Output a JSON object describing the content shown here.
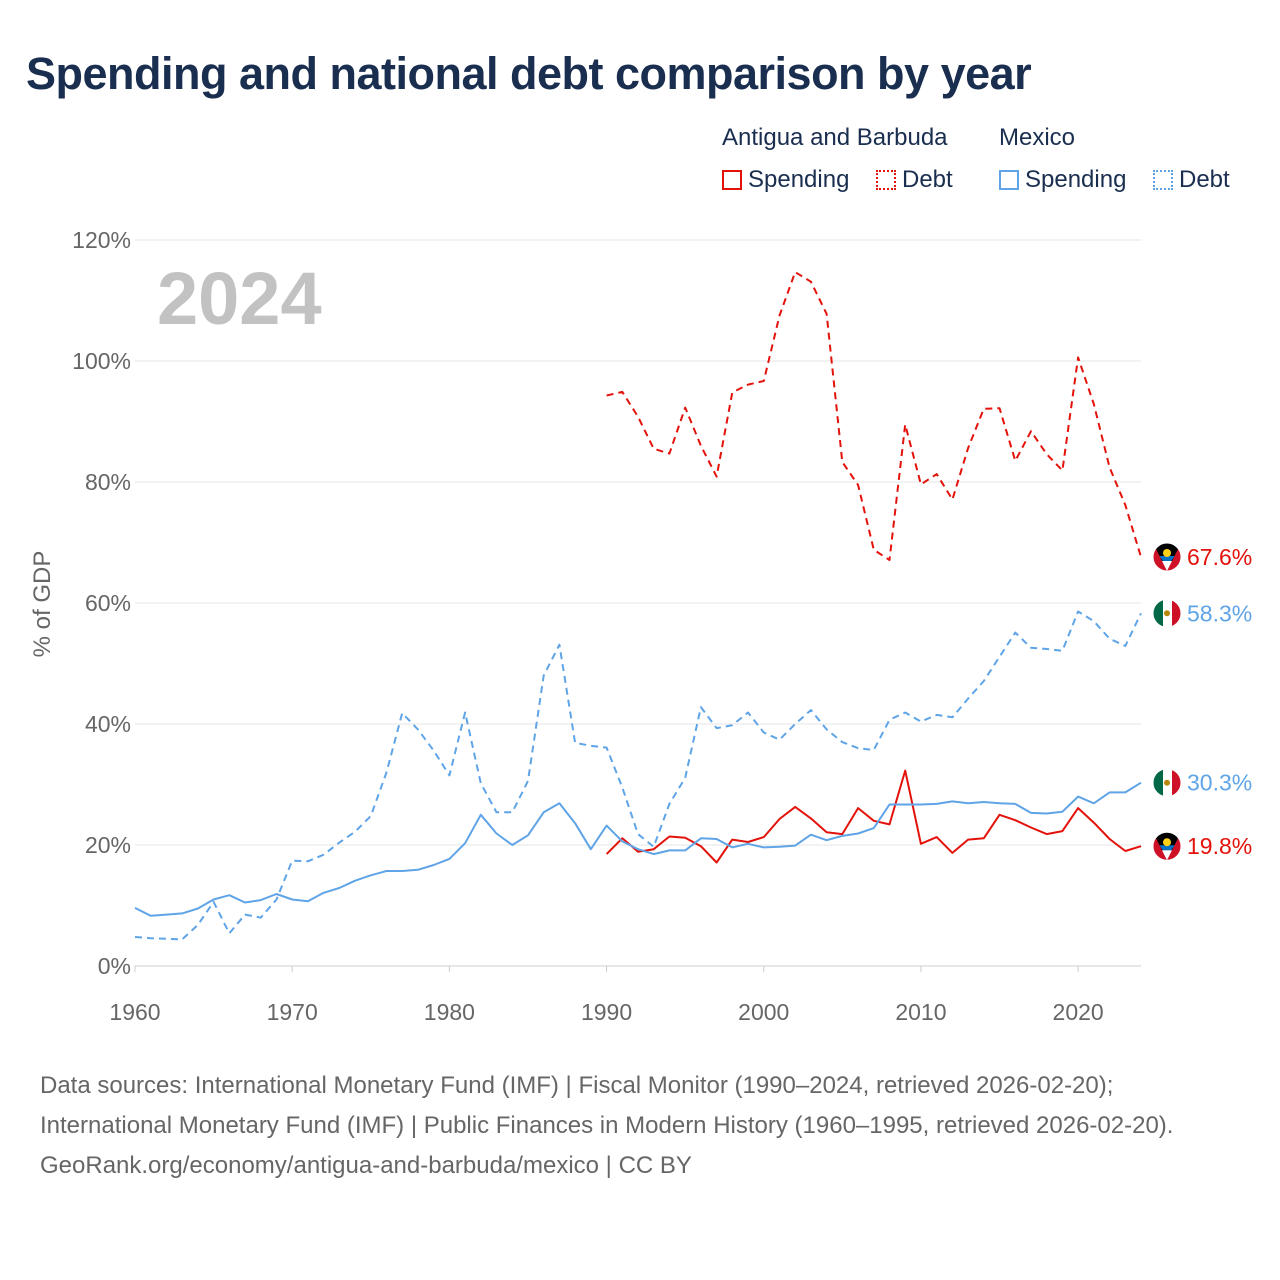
{
  "title": "Spending and national debt comparison by year",
  "legend": {
    "groups": [
      {
        "name": "Antigua and Barbuda",
        "spending_label": "Spending",
        "debt_label": "Debt"
      },
      {
        "name": "Mexico",
        "spending_label": "Spending",
        "debt_label": "Debt"
      }
    ]
  },
  "colors": {
    "antigua": "#e3120b",
    "mexico": "#5fa4e6",
    "grid": "#e6e6e6",
    "axis_text": "#666666",
    "year_watermark": "#c2c2c2"
  },
  "footer": {
    "sources": "Data sources: International Monetary Fund (IMF) | Fiscal Monitor (1990–2024, retrieved 2026-02-20); International Monetary Fund (IMF) | Public Finances in Modern History (1960–1995, retrieved 2026-02-20).",
    "attribution": "GeoRank.org/economy/antigua-and-barbuda/mexico | CC BY"
  },
  "chart_data": {
    "type": "line",
    "title": "Spending and national debt comparison by year",
    "year_label": "2024",
    "xlabel": "",
    "ylabel": "% of GDP",
    "xlim": [
      1960,
      2024
    ],
    "ylim": [
      0,
      120
    ],
    "x_ticks": [
      "1960",
      "1970",
      "1980",
      "1990",
      "2000",
      "2010",
      "2020"
    ],
    "y_ticks": [
      "0%",
      "20%",
      "40%",
      "60%",
      "80%",
      "100%",
      "120%"
    ],
    "series": [
      {
        "name": "Antigua and Barbuda Debt",
        "country": "Antigua and Barbuda",
        "metric": "Debt",
        "style": "dashed",
        "color": "#e3120b",
        "end_label": "67.6%",
        "x": [
          1990,
          1991,
          1992,
          1993,
          1994,
          1995,
          1996,
          1997,
          1998,
          1999,
          2000,
          2001,
          2002,
          2003,
          2004,
          2005,
          2006,
          2007,
          2008,
          2009,
          2010,
          2011,
          2012,
          2013,
          2014,
          2015,
          2016,
          2017,
          2018,
          2019,
          2020,
          2021,
          2022,
          2023,
          2024
        ],
        "values": [
          94.3,
          94.9,
          90.8,
          85.5,
          84.7,
          92.3,
          86.0,
          80.9,
          94.8,
          96.1,
          96.7,
          107.5,
          114.7,
          113.1,
          107.8,
          83.3,
          79.5,
          68.8,
          67.1,
          89.5,
          79.6,
          81.3,
          77.1,
          85.6,
          92.1,
          92.2,
          83.5,
          88.4,
          84.6,
          81.9,
          100.6,
          92.9,
          82.4,
          76.2,
          67.6
        ]
      },
      {
        "name": "Antigua and Barbuda Spending",
        "country": "Antigua and Barbuda",
        "metric": "Spending",
        "style": "solid",
        "color": "#e3120b",
        "end_label": "19.8%",
        "x": [
          1990,
          1991,
          1992,
          1993,
          1994,
          1995,
          1996,
          1997,
          1998,
          1999,
          2000,
          2001,
          2002,
          2003,
          2004,
          2005,
          2006,
          2007,
          2008,
          2009,
          2010,
          2011,
          2012,
          2013,
          2014,
          2015,
          2016,
          2017,
          2018,
          2019,
          2020,
          2021,
          2022,
          2023,
          2024
        ],
        "values": [
          18.5,
          21.1,
          18.9,
          19.3,
          21.4,
          21.2,
          19.8,
          17.1,
          20.9,
          20.5,
          21.3,
          24.3,
          26.3,
          24.4,
          22.1,
          21.8,
          26.1,
          24.0,
          23.4,
          32.3,
          20.2,
          21.3,
          18.7,
          20.9,
          21.1,
          25.0,
          24.1,
          22.9,
          21.8,
          22.3,
          26.1,
          23.7,
          21.0,
          19.0,
          19.8
        ]
      },
      {
        "name": "Mexico Debt",
        "country": "Mexico",
        "metric": "Debt",
        "style": "dashed",
        "color": "#5fa4e6",
        "end_label": "58.3%",
        "x": [
          1960,
          1961,
          1962,
          1963,
          1964,
          1965,
          1966,
          1967,
          1968,
          1969,
          1970,
          1971,
          1972,
          1973,
          1974,
          1975,
          1976,
          1977,
          1978,
          1979,
          1980,
          1981,
          1982,
          1983,
          1984,
          1985,
          1986,
          1987,
          1988,
          1989,
          1990,
          1991,
          1992,
          1993,
          1994,
          1995,
          1996,
          1997,
          1998,
          1999,
          2000,
          2001,
          2002,
          2003,
          2004,
          2005,
          2006,
          2007,
          2008,
          2009,
          2010,
          2011,
          2012,
          2013,
          2014,
          2015,
          2016,
          2017,
          2018,
          2019,
          2020,
          2021,
          2022,
          2023,
          2024
        ],
        "values": [
          4.8,
          4.6,
          4.5,
          4.4,
          6.8,
          10.6,
          5.4,
          8.5,
          8.0,
          11.0,
          17.4,
          17.3,
          18.4,
          20.4,
          22.2,
          24.8,
          32.0,
          41.8,
          39.1,
          35.6,
          31.5,
          41.9,
          30.2,
          25.4,
          25.4,
          30.6,
          48.0,
          53.1,
          36.9,
          36.4,
          36.1,
          29.5,
          21.8,
          19.7,
          26.8,
          31.1,
          42.8,
          39.3,
          39.8,
          41.9,
          38.6,
          37.4,
          40.0,
          42.3,
          39.1,
          37.0,
          36.0,
          35.7,
          40.7,
          41.9,
          40.4,
          41.5,
          41.1,
          44.2,
          47.1,
          51.1,
          55.1,
          52.6,
          52.4,
          52.1,
          58.6,
          57.0,
          54.1,
          52.9,
          58.3
        ]
      },
      {
        "name": "Mexico Spending",
        "country": "Mexico",
        "metric": "Spending",
        "style": "solid",
        "color": "#5fa4e6",
        "end_label": "30.3%",
        "x": [
          1960,
          1961,
          1962,
          1963,
          1964,
          1965,
          1966,
          1967,
          1968,
          1969,
          1970,
          1971,
          1972,
          1973,
          1974,
          1975,
          1976,
          1977,
          1978,
          1979,
          1980,
          1981,
          1982,
          1983,
          1984,
          1985,
          1986,
          1987,
          1988,
          1989,
          1990,
          1991,
          1992,
          1993,
          1994,
          1995,
          1996,
          1997,
          1998,
          1999,
          2000,
          2001,
          2002,
          2003,
          2004,
          2005,
          2006,
          2007,
          2008,
          2009,
          2010,
          2011,
          2012,
          2013,
          2014,
          2015,
          2016,
          2017,
          2018,
          2019,
          2020,
          2021,
          2022,
          2023,
          2024
        ],
        "values": [
          9.6,
          8.3,
          8.5,
          8.7,
          9.5,
          11.0,
          11.7,
          10.5,
          10.9,
          11.9,
          11.0,
          10.7,
          12.1,
          12.9,
          14.1,
          15.0,
          15.7,
          15.7,
          15.9,
          16.7,
          17.7,
          20.3,
          25.0,
          21.9,
          20.0,
          21.6,
          25.4,
          26.9,
          23.6,
          19.3,
          23.2,
          20.6,
          19.3,
          18.5,
          19.1,
          19.1,
          21.1,
          21.0,
          19.6,
          20.2,
          19.6,
          19.7,
          19.9,
          21.7,
          20.8,
          21.5,
          21.9,
          22.8,
          26.7,
          26.7,
          26.7,
          26.8,
          27.2,
          26.9,
          27.1,
          26.9,
          26.8,
          25.3,
          25.2,
          25.5,
          28.0,
          26.9,
          28.7,
          28.7,
          30.3
        ]
      }
    ]
  }
}
